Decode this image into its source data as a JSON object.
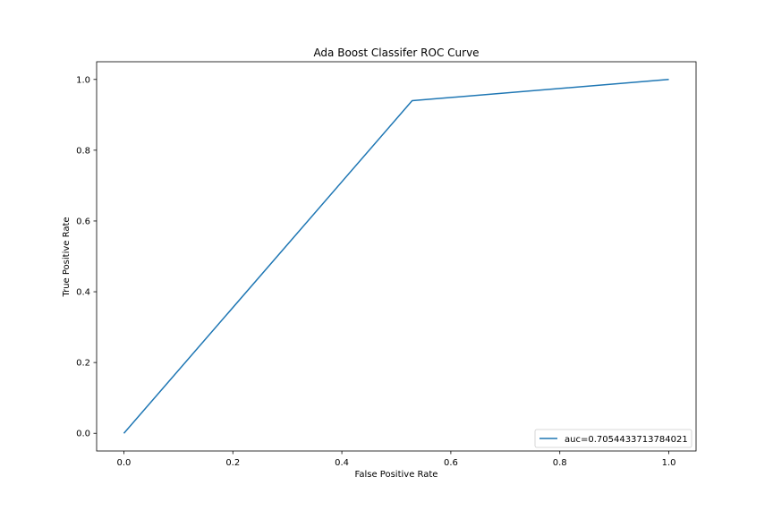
{
  "chart_data": {
    "type": "line",
    "title": "Ada Boost Classifer ROC Curve",
    "xlabel": "False Positive Rate",
    "ylabel": "True Positive Rate",
    "xlim": [
      -0.05,
      1.05
    ],
    "ylim": [
      -0.05,
      1.05
    ],
    "xticks": [
      0.0,
      0.2,
      0.4,
      0.6,
      0.8,
      1.0
    ],
    "yticks": [
      0.0,
      0.2,
      0.4,
      0.6,
      0.8,
      1.0
    ],
    "xtick_labels": [
      "0.0",
      "0.2",
      "0.4",
      "0.6",
      "0.8",
      "1.0"
    ],
    "ytick_labels": [
      "0.0",
      "0.2",
      "0.4",
      "0.6",
      "0.8",
      "1.0"
    ],
    "grid": false,
    "legend_position": "lower-right",
    "series": [
      {
        "name": "auc=0.7054433713784021",
        "color": "#1f77b4",
        "x": [
          0.0,
          0.529,
          1.0
        ],
        "y": [
          0.0,
          0.94,
          1.0
        ]
      }
    ]
  }
}
